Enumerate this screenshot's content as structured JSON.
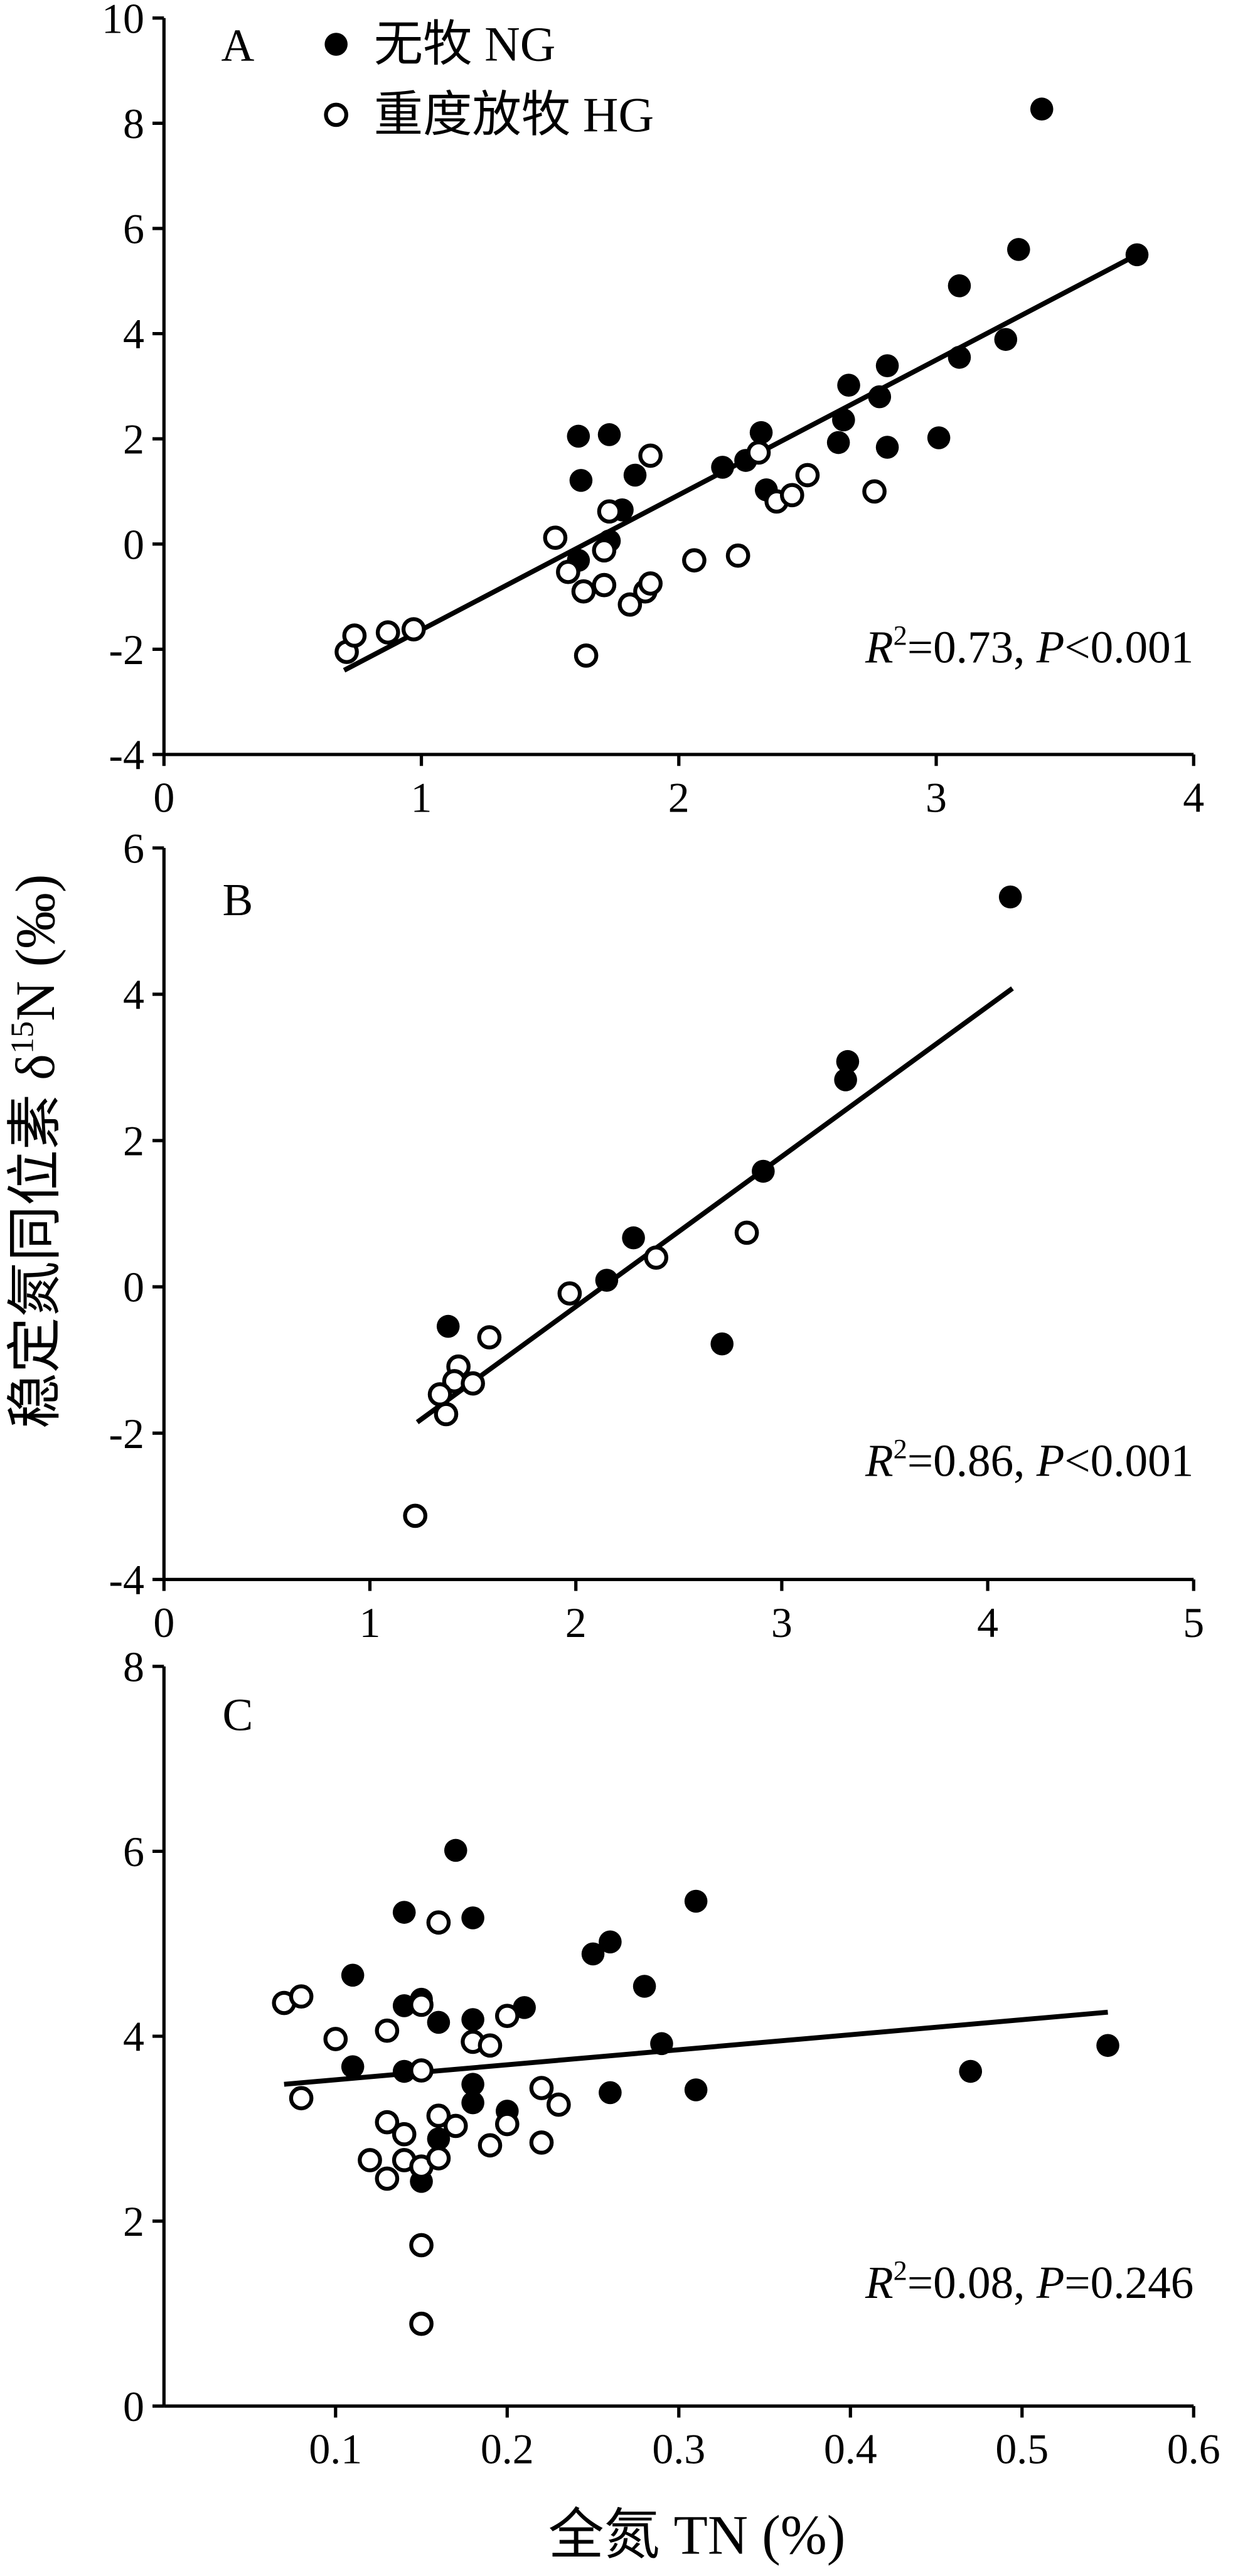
{
  "figure": {
    "xlabel": "全氮 TN (%)",
    "ylabel": {
      "main": "稳定氮同位素 δ",
      "sup": "15",
      "tail": "N (‰)"
    },
    "colors": {
      "marker": "#000000",
      "open_marker_fill": "#ffffff",
      "line": "#000000",
      "background": "#ffffff"
    }
  },
  "chart_data": [
    {
      "type": "scatter",
      "label": "A",
      "xlim": [
        0,
        4
      ],
      "ylim": [
        -4,
        10
      ],
      "grid": false,
      "xticks": [
        "0",
        "1",
        "2",
        "3",
        "4"
      ],
      "yticks": [
        "-4",
        "-2",
        "0",
        "2",
        "4",
        "6",
        "8",
        "10"
      ],
      "legend": {
        "position": "top-left",
        "items": [
          {
            "label": "无牧 NG",
            "marker": "filled"
          },
          {
            "label": "重度放牧 HG",
            "marker": "open"
          }
        ]
      },
      "series": [
        {
          "marker": "filled",
          "points": [
            [
              3.41,
              8.27
            ],
            [
              3.78,
              5.5
            ],
            [
              3.32,
              5.6
            ],
            [
              3.09,
              4.91
            ],
            [
              3.27,
              3.89
            ],
            [
              3.09,
              3.55
            ],
            [
              2.81,
              3.39
            ],
            [
              2.66,
              3.02
            ],
            [
              2.78,
              2.8
            ],
            [
              2.64,
              2.36
            ],
            [
              2.62,
              1.93
            ],
            [
              2.81,
              1.84
            ],
            [
              3.01,
              2.02
            ],
            [
              2.32,
              2.12
            ],
            [
              2.26,
              1.59
            ],
            [
              2.34,
              1.03
            ],
            [
              2.17,
              1.46
            ],
            [
              1.61,
              2.05
            ],
            [
              1.73,
              2.08
            ],
            [
              1.62,
              1.21
            ],
            [
              1.83,
              1.31
            ],
            [
              1.78,
              0.65
            ],
            [
              1.73,
              0.06
            ],
            [
              1.61,
              -0.31
            ]
          ]
        },
        {
          "marker": "open",
          "points": [
            [
              0.71,
              -2.05
            ],
            [
              0.74,
              -1.74
            ],
            [
              0.87,
              -1.68
            ],
            [
              0.97,
              -1.62
            ],
            [
              1.52,
              0.12
            ],
            [
              1.57,
              -0.53
            ],
            [
              1.63,
              -0.9
            ],
            [
              1.64,
              -2.12
            ],
            [
              1.71,
              -0.78
            ],
            [
              1.71,
              -0.12
            ],
            [
              1.73,
              0.62
            ],
            [
              1.81,
              -1.15
            ],
            [
              1.87,
              -0.9
            ],
            [
              1.89,
              -0.75
            ],
            [
              1.89,
              1.68
            ],
            [
              2.06,
              -0.31
            ],
            [
              2.23,
              -0.22
            ],
            [
              2.31,
              1.74
            ],
            [
              2.38,
              0.81
            ],
            [
              2.44,
              0.93
            ],
            [
              2.5,
              1.31
            ],
            [
              2.76,
              1.0
            ]
          ]
        }
      ],
      "fit_line": [
        [
          0.7,
          -2.4
        ],
        [
          3.78,
          5.5
        ]
      ],
      "annotation": {
        "r": "R",
        "r_exp": "2",
        "r_val": "=0.73, ",
        "p": "P",
        "p_val": "<0.001"
      }
    },
    {
      "type": "scatter",
      "label": "B",
      "xlim": [
        0,
        5
      ],
      "ylim": [
        -4,
        6
      ],
      "grid": false,
      "xticks": [
        "0",
        "1",
        "2",
        "3",
        "4",
        "5"
      ],
      "yticks": [
        "-4",
        "-2",
        "0",
        "2",
        "4",
        "6"
      ],
      "series": [
        {
          "marker": "filled",
          "points": [
            [
              4.11,
              5.33
            ],
            [
              3.32,
              3.08
            ],
            [
              3.31,
              2.83
            ],
            [
              2.91,
              1.58
            ],
            [
              2.28,
              0.67
            ],
            [
              2.15,
              0.09
            ],
            [
              2.71,
              -0.78
            ],
            [
              1.38,
              -0.54
            ]
          ]
        },
        {
          "marker": "open",
          "points": [
            [
              2.83,
              0.74
            ],
            [
              2.39,
              0.4
            ],
            [
              1.97,
              -0.09
            ],
            [
              1.58,
              -0.69
            ],
            [
              1.43,
              -1.09
            ],
            [
              1.41,
              -1.29
            ],
            [
              1.5,
              -1.32
            ],
            [
              1.34,
              -1.47
            ],
            [
              1.37,
              -1.74
            ],
            [
              1.22,
              -3.13
            ]
          ]
        }
      ],
      "fit_line": [
        [
          1.23,
          -1.85
        ],
        [
          4.12,
          4.08
        ]
      ],
      "annotation": {
        "r": "R",
        "r_exp": "2",
        "r_val": "=0.86, ",
        "p": "P",
        "p_val": "<0.001"
      }
    },
    {
      "type": "scatter",
      "label": "C",
      "xlim": [
        0,
        0.6
      ],
      "ylim": [
        0,
        8
      ],
      "grid": false,
      "xticks": [
        "0.1",
        "0.2",
        "0.3",
        "0.4",
        "0.5",
        "0.6"
      ],
      "yticks": [
        "0",
        "2",
        "4",
        "6",
        "8"
      ],
      "series": [
        {
          "marker": "filled",
          "points": [
            [
              0.17,
              6.01
            ],
            [
              0.14,
              5.34
            ],
            [
              0.18,
              5.28
            ],
            [
              0.31,
              5.46
            ],
            [
              0.26,
              5.02
            ],
            [
              0.25,
              4.89
            ],
            [
              0.28,
              4.54
            ],
            [
              0.11,
              4.66
            ],
            [
              0.14,
              4.33
            ],
            [
              0.15,
              4.4
            ],
            [
              0.21,
              4.31
            ],
            [
              0.18,
              4.18
            ],
            [
              0.16,
              4.15
            ],
            [
              0.29,
              3.92
            ],
            [
              0.55,
              3.9
            ],
            [
              0.47,
              3.62
            ],
            [
              0.11,
              3.67
            ],
            [
              0.14,
              3.62
            ],
            [
              0.18,
              3.48
            ],
            [
              0.26,
              3.39
            ],
            [
              0.31,
              3.42
            ],
            [
              0.18,
              3.28
            ],
            [
              0.2,
              3.19
            ],
            [
              0.16,
              2.89
            ],
            [
              0.15,
              2.43
            ]
          ]
        },
        {
          "marker": "open",
          "points": [
            [
              0.07,
              4.36
            ],
            [
              0.08,
              4.43
            ],
            [
              0.1,
              3.97
            ],
            [
              0.08,
              3.33
            ],
            [
              0.15,
              4.34
            ],
            [
              0.16,
              5.23
            ],
            [
              0.13,
              4.06
            ],
            [
              0.15,
              3.63
            ],
            [
              0.18,
              3.94
            ],
            [
              0.19,
              3.9
            ],
            [
              0.2,
              4.22
            ],
            [
              0.22,
              3.44
            ],
            [
              0.23,
              3.26
            ],
            [
              0.13,
              3.07
            ],
            [
              0.14,
              2.94
            ],
            [
              0.16,
              3.14
            ],
            [
              0.17,
              3.03
            ],
            [
              0.2,
              3.05
            ],
            [
              0.19,
              2.82
            ],
            [
              0.22,
              2.85
            ],
            [
              0.12,
              2.66
            ],
            [
              0.13,
              2.46
            ],
            [
              0.14,
              2.66
            ],
            [
              0.15,
              2.59
            ],
            [
              0.16,
              2.68
            ],
            [
              0.15,
              1.74
            ],
            [
              0.15,
              0.89
            ]
          ]
        }
      ],
      "fit_line": [
        [
          0.07,
          3.48
        ],
        [
          0.55,
          4.26
        ]
      ],
      "annotation": {
        "r": "R",
        "r_exp": "2",
        "r_val": "=0.08, ",
        "p": "P",
        "p_val": "=0.246"
      }
    }
  ]
}
